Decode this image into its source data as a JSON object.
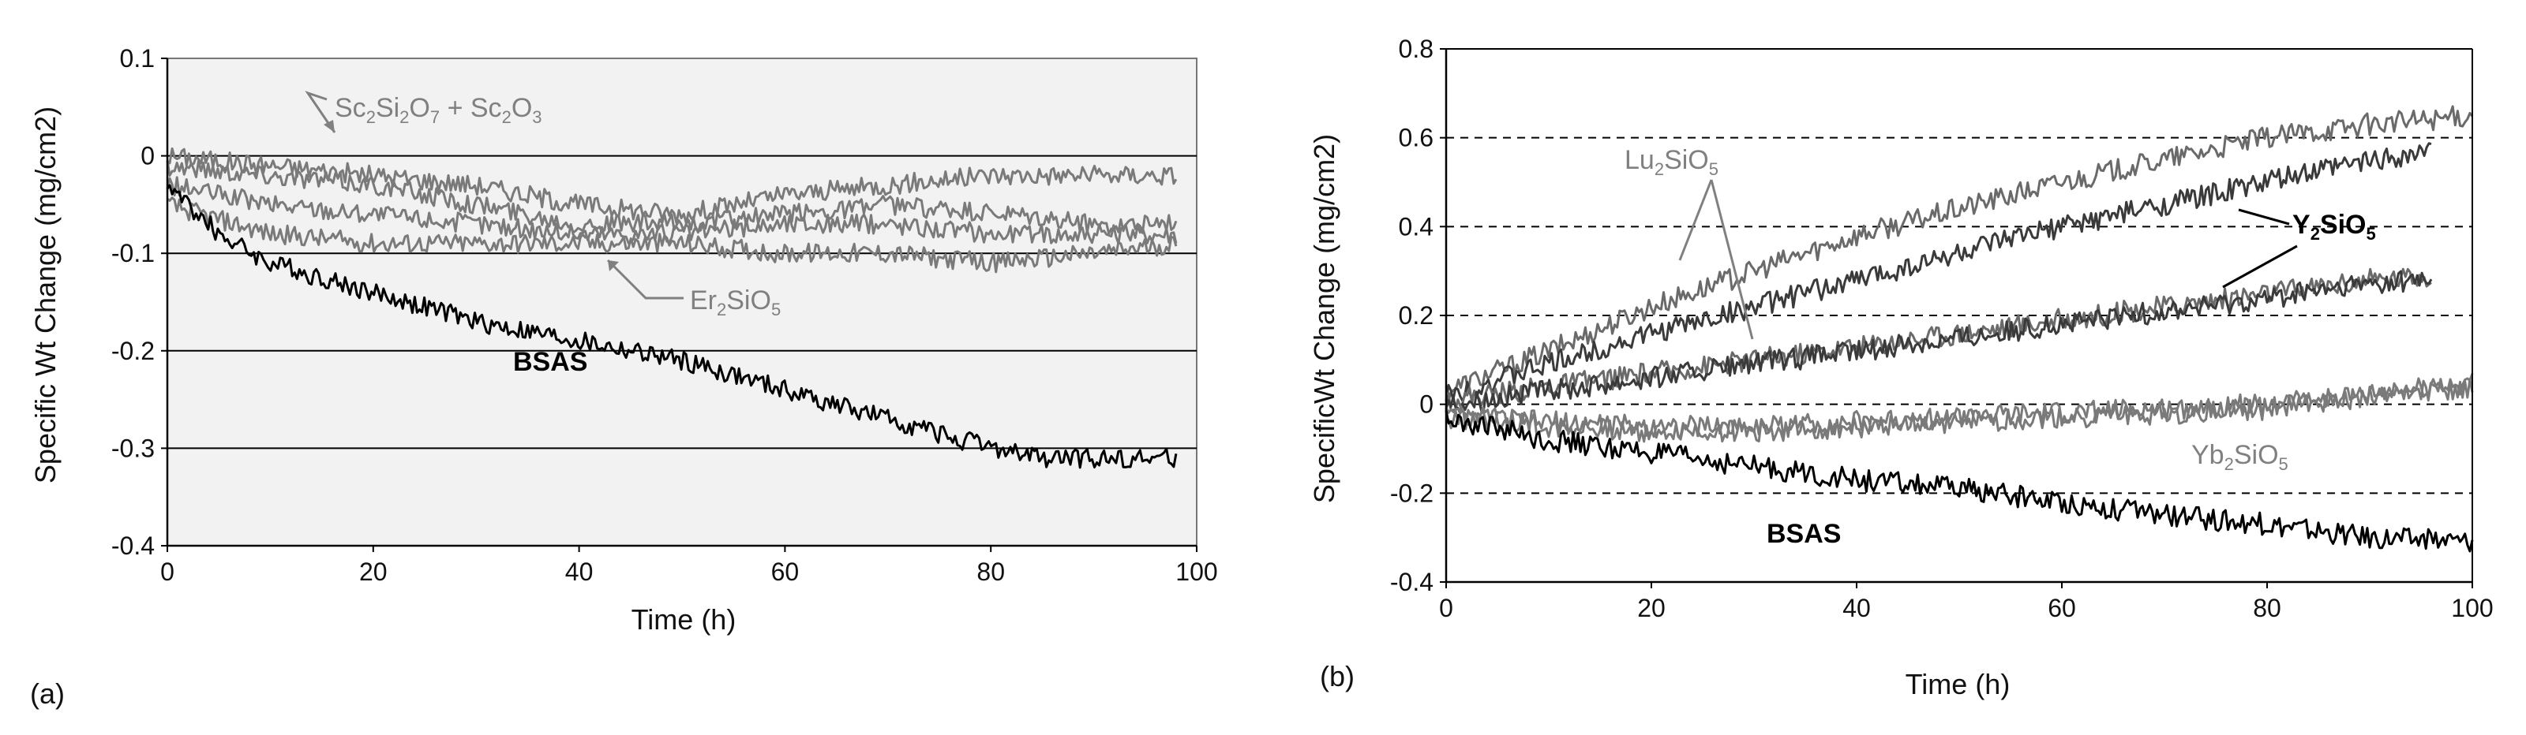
{
  "chart_data": [
    {
      "type": "line",
      "panel_label": "(a)",
      "xlabel": "Time (h)",
      "ylabel": "Specific Wt Change (mg/cm2)",
      "xlim": [
        0,
        100
      ],
      "ylim": [
        -0.4,
        0.1
      ],
      "x_ticks": [
        "0",
        "20",
        "40",
        "60",
        "80",
        "100"
      ],
      "y_ticks": [
        "0.1",
        "0",
        "-0.1",
        "-0.2",
        "-0.3",
        "-0.4"
      ],
      "grid": "horizontal solid",
      "annotations": [
        {
          "text": "Sc2Si2O7 + Sc2O3",
          "color": "#808080"
        },
        {
          "text": "Er2SiO5",
          "color": "#808080"
        },
        {
          "text": "BSAS",
          "color": "#000000"
        }
      ],
      "series": [
        {
          "label_ref": "Sc2Si2O7 + Sc2O3",
          "color": "#7a7a7a",
          "x": [
            0,
            10,
            20,
            30,
            40,
            50,
            60,
            70,
            80,
            90,
            98
          ],
          "y": [
            0.0,
            -0.01,
            -0.02,
            -0.03,
            -0.05,
            -0.06,
            -0.04,
            -0.03,
            -0.02,
            -0.02,
            -0.02
          ]
        },
        {
          "label_ref": "Sc2Si2O7 + Sc2O3",
          "color": "#7a7a7a",
          "x": [
            0,
            10,
            20,
            30,
            40,
            50,
            60,
            70,
            80,
            90,
            98
          ],
          "y": [
            -0.01,
            -0.02,
            -0.03,
            -0.05,
            -0.07,
            -0.07,
            -0.06,
            -0.05,
            -0.06,
            -0.07,
            -0.07
          ]
        },
        {
          "label_ref": "Er2SiO5",
          "color": "#7a7a7a",
          "x": [
            0,
            10,
            20,
            30,
            40,
            50,
            60,
            70,
            80,
            90,
            98
          ],
          "y": [
            -0.03,
            -0.05,
            -0.06,
            -0.07,
            -0.08,
            -0.08,
            -0.07,
            -0.07,
            -0.08,
            -0.08,
            -0.08
          ]
        },
        {
          "label_ref": "Er2SiO5",
          "color": "#7a7a7a",
          "x": [
            0,
            10,
            20,
            30,
            40,
            50,
            60,
            70,
            80,
            90,
            98
          ],
          "y": [
            -0.05,
            -0.08,
            -0.09,
            -0.09,
            -0.09,
            -0.09,
            -0.1,
            -0.1,
            -0.11,
            -0.1,
            -0.09
          ]
        },
        {
          "label_ref": "BSAS",
          "color": "#000000",
          "x": [
            0,
            5,
            10,
            20,
            30,
            40,
            50,
            60,
            70,
            80,
            85,
            90,
            98
          ],
          "y": [
            -0.03,
            -0.08,
            -0.11,
            -0.14,
            -0.17,
            -0.19,
            -0.21,
            -0.24,
            -0.27,
            -0.3,
            -0.31,
            -0.31,
            -0.31
          ]
        }
      ]
    },
    {
      "type": "line",
      "panel_label": "(b)",
      "xlabel": "Time (h)",
      "ylabel": "SpecificWt Change (mg/cm2)",
      "xlim": [
        0,
        100
      ],
      "ylim": [
        -0.4,
        0.8
      ],
      "x_ticks": [
        "0",
        "20",
        "40",
        "60",
        "80",
        "100"
      ],
      "y_ticks": [
        "0.8",
        "0.6",
        "0.4",
        "0.2",
        "0",
        "-0.2",
        "-0.4"
      ],
      "grid": "horizontal dashed",
      "annotations": [
        {
          "text": "Lu2SiO5",
          "color": "#808080"
        },
        {
          "text": "Y2SiO5",
          "color": "#000000"
        },
        {
          "text": "Yb2SiO5",
          "color": "#808080"
        },
        {
          "text": "BSAS",
          "color": "#000000"
        }
      ],
      "series": [
        {
          "label_ref": "Lu2SiO5",
          "color": "#6a6a6a",
          "x": [
            0,
            10,
            20,
            30,
            40,
            50,
            60,
            70,
            80,
            90,
            100
          ],
          "y": [
            0.03,
            0.12,
            0.22,
            0.3,
            0.38,
            0.44,
            0.5,
            0.55,
            0.6,
            0.63,
            0.65
          ]
        },
        {
          "label_ref": "Y2SiO5",
          "color": "#3a3a3a",
          "x": [
            0,
            10,
            20,
            30,
            40,
            50,
            60,
            70,
            80,
            90,
            96
          ],
          "y": [
            0.02,
            0.09,
            0.16,
            0.22,
            0.28,
            0.34,
            0.4,
            0.45,
            0.5,
            0.55,
            0.57
          ]
        },
        {
          "label_ref": "Lu2SiO5",
          "color": "#6a6a6a",
          "x": [
            0,
            10,
            20,
            30,
            40,
            50,
            60,
            70,
            80,
            90,
            96
          ],
          "y": [
            0.01,
            0.04,
            0.07,
            0.1,
            0.13,
            0.16,
            0.19,
            0.22,
            0.25,
            0.28,
            0.29
          ]
        },
        {
          "label_ref": "Y2SiO5",
          "color": "#3a3a3a",
          "x": [
            0,
            10,
            20,
            30,
            40,
            50,
            60,
            70,
            80,
            90,
            96
          ],
          "y": [
            0.0,
            0.03,
            0.06,
            0.09,
            0.12,
            0.15,
            0.18,
            0.21,
            0.24,
            0.27,
            0.28
          ]
        },
        {
          "label_ref": "Yb2SiO5",
          "color": "#7a7a7a",
          "x": [
            0,
            10,
            20,
            30,
            40,
            50,
            60,
            70,
            80,
            90,
            100
          ],
          "y": [
            -0.02,
            -0.05,
            -0.06,
            -0.06,
            -0.05,
            -0.04,
            -0.03,
            -0.02,
            -0.01,
            0.02,
            0.05
          ]
        },
        {
          "label_ref": "Yb2SiO5",
          "color": "#7a7a7a",
          "x": [
            0,
            10,
            20,
            30,
            40,
            50,
            60,
            70,
            80,
            90,
            100
          ],
          "y": [
            -0.03,
            -0.04,
            -0.05,
            -0.05,
            -0.04,
            -0.03,
            -0.02,
            -0.01,
            0.0,
            0.02,
            0.04
          ]
        },
        {
          "label_ref": "BSAS",
          "color": "#000000",
          "x": [
            0,
            10,
            20,
            30,
            40,
            50,
            60,
            70,
            80,
            90,
            100
          ],
          "y": [
            -0.03,
            -0.08,
            -0.11,
            -0.14,
            -0.17,
            -0.19,
            -0.22,
            -0.25,
            -0.27,
            -0.3,
            -0.31
          ]
        }
      ]
    }
  ]
}
